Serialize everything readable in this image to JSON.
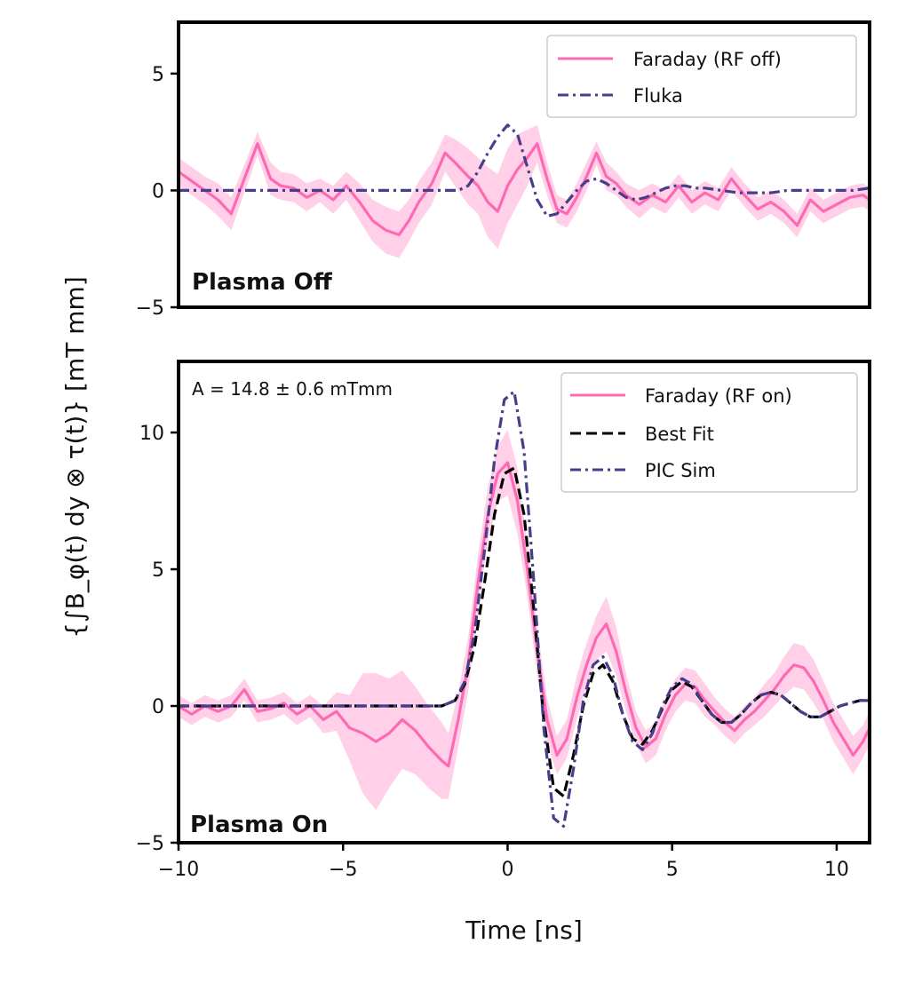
{
  "chart_data": [
    {
      "type": "line",
      "panel_label": "Plasma Off",
      "xlim": [
        -10,
        11
      ],
      "ylim": [
        -5,
        7.2
      ],
      "yticks": [
        -5,
        0,
        5
      ],
      "legend_position": "top-right",
      "series": [
        {
          "name": "Faraday (RF off)",
          "color": "#ff69b4",
          "style": "solid",
          "band_color": "#ffc0e0",
          "x": [
            -10,
            -9.6,
            -9.2,
            -8.8,
            -8.4,
            -8.0,
            -7.6,
            -7.2,
            -6.9,
            -6.5,
            -6.1,
            -5.7,
            -5.3,
            -4.9,
            -4.5,
            -4.1,
            -3.7,
            -3.3,
            -3.0,
            -2.7,
            -2.3,
            -1.9,
            -1.6,
            -1.2,
            -0.9,
            -0.6,
            -0.3,
            0.0,
            0.3,
            0.6,
            0.9,
            1.2,
            1.5,
            1.8,
            2.1,
            2.4,
            2.7,
            3.0,
            3.3,
            3.6,
            4.0,
            4.4,
            4.8,
            5.2,
            5.6,
            6.0,
            6.4,
            6.8,
            7.2,
            7.6,
            8.0,
            8.4,
            8.8,
            9.2,
            9.6,
            10.0,
            10.4,
            10.8,
            11.0
          ],
          "y": [
            0.8,
            0.4,
            0.0,
            -0.4,
            -1.0,
            0.5,
            2.0,
            0.5,
            0.2,
            0.1,
            -0.3,
            0.0,
            -0.4,
            0.2,
            -0.5,
            -1.3,
            -1.7,
            -1.9,
            -1.3,
            -0.5,
            0.3,
            1.6,
            1.2,
            0.6,
            0.2,
            -0.5,
            -0.9,
            0.2,
            0.9,
            1.4,
            2.0,
            0.5,
            -0.8,
            -1.0,
            -0.3,
            0.6,
            1.6,
            0.6,
            0.3,
            -0.2,
            -0.6,
            -0.2,
            -0.5,
            0.2,
            -0.5,
            -0.1,
            -0.4,
            0.5,
            -0.2,
            -0.8,
            -0.5,
            -0.9,
            -1.5,
            -0.4,
            -0.9,
            -0.6,
            -0.3,
            -0.2,
            -0.4
          ],
          "band": [
            0.6,
            0.6,
            0.6,
            0.7,
            0.7,
            0.6,
            0.5,
            0.7,
            0.6,
            0.6,
            0.6,
            0.5,
            0.6,
            0.6,
            0.8,
            0.9,
            1.0,
            1.0,
            0.9,
            0.9,
            0.9,
            0.8,
            1.0,
            1.2,
            1.2,
            1.5,
            1.6,
            1.6,
            1.5,
            1.2,
            0.8,
            0.7,
            0.6,
            0.6,
            0.6,
            0.6,
            0.5,
            0.6,
            0.5,
            0.5,
            0.6,
            0.5,
            0.5,
            0.5,
            0.5,
            0.5,
            0.5,
            0.5,
            0.5,
            0.5,
            0.5,
            0.5,
            0.5,
            0.5,
            0.5,
            0.5,
            0.5,
            0.5,
            0.5
          ]
        },
        {
          "name": "Fluka",
          "color": "#483d8b",
          "style": "dashdot",
          "x": [
            -10,
            -2.0,
            -1.5,
            -1.2,
            -0.9,
            -0.6,
            -0.3,
            0.0,
            0.3,
            0.6,
            0.9,
            1.2,
            1.5,
            1.8,
            2.1,
            2.4,
            2.7,
            3.0,
            3.3,
            3.6,
            3.9,
            4.2,
            4.5,
            4.8,
            5.1,
            5.4,
            5.7,
            6.0,
            6.5,
            7.0,
            7.5,
            8.0,
            8.5,
            9.0,
            9.5,
            10.0,
            10.5,
            11.0
          ],
          "y": [
            0.0,
            0.0,
            0.0,
            0.2,
            0.8,
            1.6,
            2.3,
            2.8,
            2.4,
            1.0,
            -0.4,
            -1.1,
            -1.0,
            -0.5,
            0.0,
            0.4,
            0.5,
            0.3,
            0.0,
            -0.3,
            -0.4,
            -0.3,
            -0.1,
            0.1,
            0.2,
            0.2,
            0.1,
            0.1,
            0.0,
            -0.1,
            -0.1,
            -0.1,
            0.0,
            0.0,
            0.0,
            0.0,
            0.0,
            0.1
          ]
        }
      ]
    },
    {
      "type": "line",
      "panel_label": "Plasma On",
      "annotation": "A = 14.8 ± 0.6 mTmm",
      "xlim": [
        -10,
        11
      ],
      "ylim": [
        -5,
        12.6
      ],
      "yticks": [
        -5,
        0,
        5,
        10
      ],
      "xticks": [
        -10,
        -5,
        0,
        5,
        10
      ],
      "xlabel": "Time [ns]",
      "ylabel": "{∫B_φ(t) dy ⊗ τ(t)} [mT mm]",
      "legend_position": "top-right",
      "series": [
        {
          "name": "Faraday (RF on)",
          "color": "#ff69b4",
          "style": "solid",
          "band_color": "#ffc0e0",
          "x": [
            -10,
            -9.6,
            -9.2,
            -8.8,
            -8.4,
            -8.0,
            -7.6,
            -7.2,
            -6.8,
            -6.4,
            -6.0,
            -5.6,
            -5.2,
            -4.8,
            -4.4,
            -4.0,
            -3.6,
            -3.2,
            -2.8,
            -2.4,
            -2.0,
            -1.8,
            -1.5,
            -1.2,
            -0.9,
            -0.6,
            -0.3,
            0.0,
            0.3,
            0.6,
            0.9,
            1.2,
            1.5,
            1.8,
            2.1,
            2.4,
            2.7,
            3.0,
            3.3,
            3.6,
            3.9,
            4.2,
            4.5,
            4.8,
            5.1,
            5.4,
            5.7,
            6.0,
            6.3,
            6.6,
            6.9,
            7.2,
            7.5,
            7.8,
            8.1,
            8.4,
            8.7,
            9.0,
            9.3,
            9.6,
            9.9,
            10.2,
            10.5,
            10.8,
            11.0
          ],
          "y": [
            0.0,
            -0.3,
            0.0,
            -0.2,
            0.0,
            0.6,
            -0.2,
            -0.1,
            0.1,
            -0.3,
            0.0,
            -0.5,
            -0.2,
            -0.8,
            -1.0,
            -1.3,
            -1.0,
            -0.5,
            -0.9,
            -1.5,
            -2.0,
            -2.2,
            -0.5,
            1.5,
            4.5,
            7.0,
            8.5,
            8.9,
            7.5,
            5.0,
            2.0,
            -0.5,
            -1.8,
            -1.2,
            0.3,
            1.5,
            2.5,
            3.0,
            2.0,
            0.5,
            -0.8,
            -1.5,
            -1.2,
            -0.3,
            0.4,
            0.8,
            0.7,
            0.2,
            -0.2,
            -0.6,
            -0.9,
            -0.5,
            -0.2,
            0.2,
            0.6,
            1.1,
            1.5,
            1.4,
            0.9,
            0.2,
            -0.6,
            -1.2,
            -1.8,
            -1.3,
            -0.8
          ],
          "band": [
            0.4,
            0.4,
            0.4,
            0.4,
            0.4,
            0.4,
            0.4,
            0.4,
            0.4,
            0.4,
            0.4,
            0.5,
            0.7,
            1.2,
            2.2,
            2.5,
            2.0,
            1.8,
            1.6,
            1.5,
            1.4,
            1.2,
            1.0,
            1.0,
            1.0,
            1.0,
            1.0,
            1.2,
            1.2,
            1.0,
            0.9,
            0.8,
            0.7,
            0.7,
            0.8,
            0.8,
            0.8,
            1.0,
            0.9,
            0.7,
            0.6,
            0.6,
            0.6,
            0.6,
            0.6,
            0.6,
            0.6,
            0.6,
            0.5,
            0.5,
            0.5,
            0.5,
            0.5,
            0.6,
            0.6,
            0.7,
            0.8,
            0.8,
            0.8,
            0.7,
            0.7,
            0.7,
            0.7,
            0.6,
            0.6
          ]
        },
        {
          "name": "Best Fit",
          "color": "#000000",
          "style": "dashed",
          "x": [
            -10,
            -2.0,
            -1.6,
            -1.3,
            -1.0,
            -0.7,
            -0.4,
            -0.1,
            0.2,
            0.5,
            0.8,
            1.1,
            1.4,
            1.7,
            2.0,
            2.3,
            2.6,
            2.9,
            3.2,
            3.5,
            3.8,
            4.1,
            4.4,
            4.7,
            5.0,
            5.3,
            5.6,
            5.9,
            6.2,
            6.5,
            6.8,
            7.1,
            7.4,
            7.7,
            8.0,
            8.3,
            8.6,
            8.9,
            9.2,
            9.5,
            9.8,
            10.1,
            10.4,
            10.7,
            11.0
          ],
          "y": [
            0.0,
            0.0,
            0.2,
            0.8,
            2.2,
            4.5,
            7.0,
            8.5,
            8.7,
            7.0,
            3.5,
            -0.5,
            -3.0,
            -3.3,
            -1.8,
            0.0,
            1.2,
            1.5,
            0.9,
            -0.3,
            -1.2,
            -1.4,
            -0.9,
            -0.1,
            0.6,
            0.9,
            0.7,
            0.2,
            -0.3,
            -0.6,
            -0.6,
            -0.3,
            0.1,
            0.4,
            0.5,
            0.4,
            0.1,
            -0.2,
            -0.4,
            -0.4,
            -0.2,
            0.0,
            0.1,
            0.2,
            0.2
          ]
        },
        {
          "name": "PIC Sim",
          "color": "#483d8b",
          "style": "dashdot",
          "x": [
            -10,
            -2.0,
            -1.6,
            -1.3,
            -1.0,
            -0.7,
            -0.4,
            -0.1,
            0.2,
            0.5,
            0.8,
            1.1,
            1.4,
            1.7,
            2.0,
            2.3,
            2.6,
            2.9,
            3.2,
            3.5,
            3.8,
            4.1,
            4.4,
            4.7,
            5.0,
            5.3,
            5.6,
            5.9,
            6.2,
            6.5,
            6.8,
            7.1,
            7.4,
            7.7,
            8.0,
            8.3,
            8.6,
            8.9,
            9.2,
            9.5,
            9.8,
            10.1,
            10.4,
            10.7,
            11.0
          ],
          "y": [
            0.0,
            0.0,
            0.2,
            0.9,
            2.7,
            5.7,
            9.0,
            11.2,
            11.5,
            9.3,
            4.5,
            -0.8,
            -4.1,
            -4.4,
            -2.3,
            0.2,
            1.5,
            1.8,
            1.1,
            -0.3,
            -1.3,
            -1.6,
            -1.0,
            0.0,
            0.7,
            1.0,
            0.8,
            0.2,
            -0.3,
            -0.6,
            -0.6,
            -0.3,
            0.1,
            0.4,
            0.5,
            0.4,
            0.1,
            -0.2,
            -0.4,
            -0.4,
            -0.2,
            0.0,
            0.1,
            0.2,
            0.2
          ]
        }
      ]
    }
  ]
}
